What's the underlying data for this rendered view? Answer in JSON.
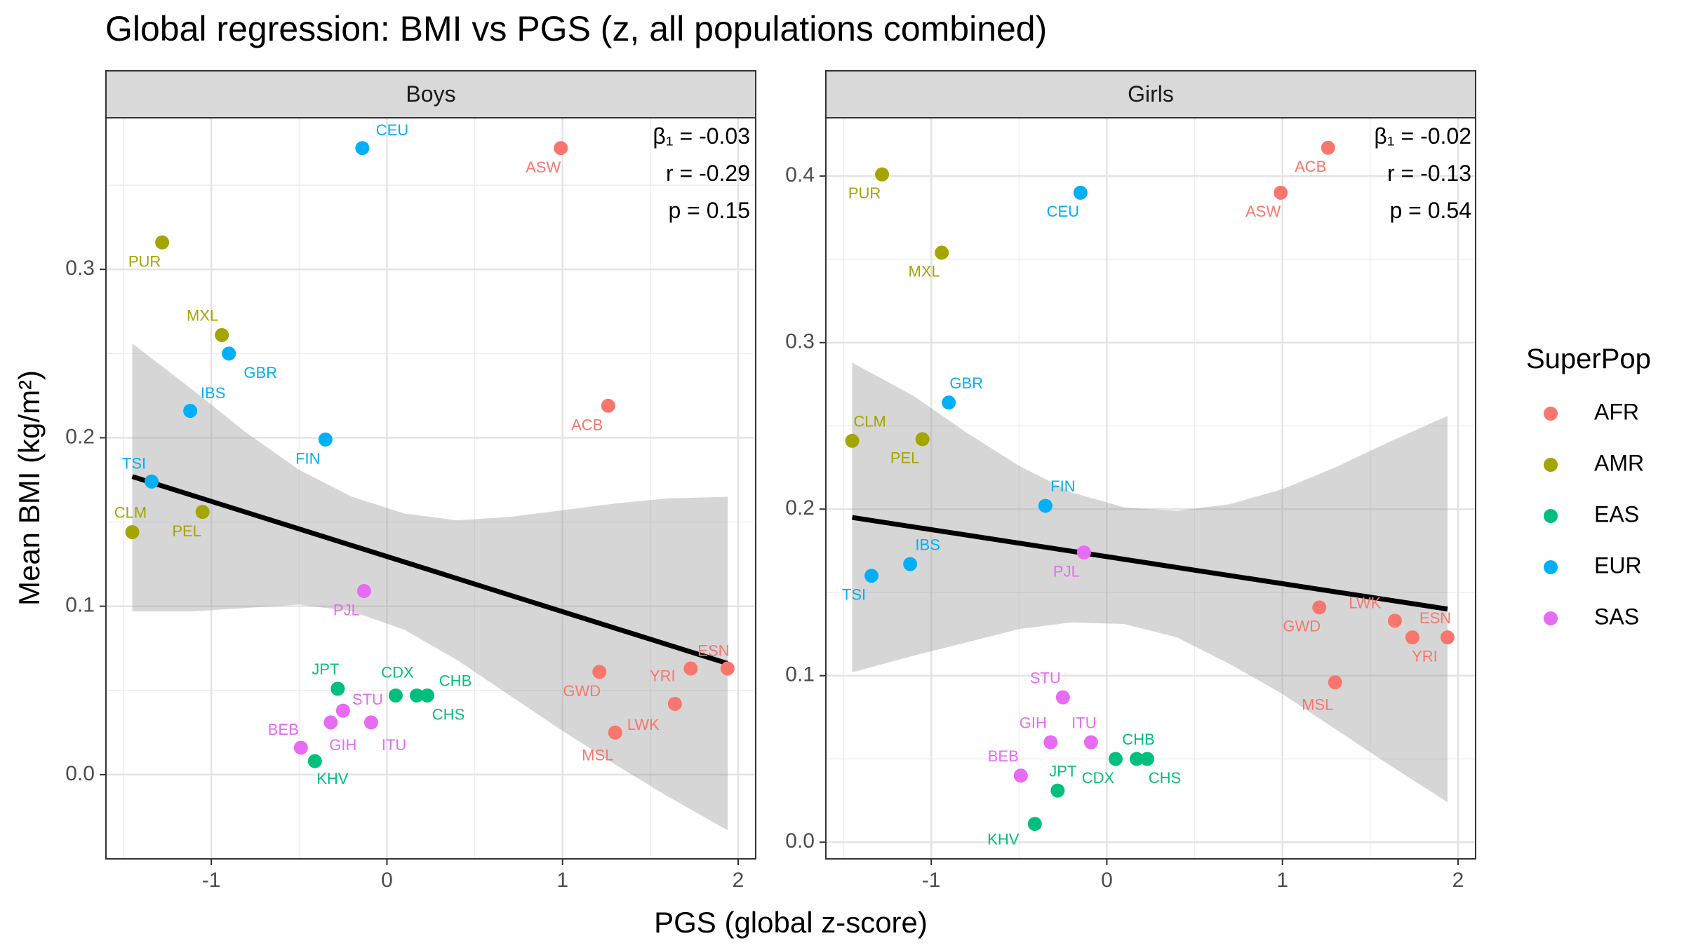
{
  "chart_data": {
    "type": "scatter",
    "title": "Global regression: BMI vs PGS (z, all populations combined)",
    "xlabel": "PGS (global z-score)",
    "ylabel": "Mean BMI (kg/m²)",
    "grid": true,
    "legend": {
      "title": "SuperPop",
      "position": "right",
      "entries": [
        {
          "name": "AFR",
          "color": "#F8766D"
        },
        {
          "name": "AMR",
          "color": "#A3A500"
        },
        {
          "name": "EAS",
          "color": "#00BF7D"
        },
        {
          "name": "EUR",
          "color": "#00B0F6"
        },
        {
          "name": "SAS",
          "color": "#E76BF3"
        }
      ]
    },
    "panels": [
      {
        "name": "Boys",
        "xlim": [
          -1.6,
          2.1
        ],
        "ylim": [
          -0.05,
          0.39
        ],
        "xticks": [
          -1,
          0,
          1,
          2
        ],
        "yticks": [
          0.0,
          0.1,
          0.2,
          0.3
        ],
        "ytick_labels": [
          "0.0",
          "0.1",
          "0.2",
          "0.3"
        ],
        "stats": [
          "β₁ = -0.03",
          "r = -0.29",
          "p = 0.15"
        ],
        "fit_line": {
          "x": [
            -1.45,
            1.94
          ],
          "y": [
            0.177,
            0.066
          ]
        },
        "band": {
          "x": [
            -1.45,
            -1.1,
            -0.8,
            -0.5,
            -0.2,
            0.1,
            0.4,
            0.7,
            1.0,
            1.3,
            1.6,
            1.94
          ],
          "upper": [
            0.256,
            0.228,
            0.203,
            0.181,
            0.165,
            0.155,
            0.151,
            0.153,
            0.157,
            0.161,
            0.164,
            0.165
          ],
          "lower": [
            0.097,
            0.097,
            0.099,
            0.101,
            0.097,
            0.086,
            0.068,
            0.047,
            0.026,
            0.006,
            -0.013,
            -0.033
          ]
        },
        "points": [
          {
            "label": "ASW",
            "pop": "AFR",
            "x": 0.99,
            "y": 0.372,
            "lx": -0.1,
            "ly": -0.012
          },
          {
            "label": "ACB",
            "pop": "AFR",
            "x": 1.26,
            "y": 0.219,
            "lx": -0.12,
            "ly": -0.012
          },
          {
            "label": "ESN",
            "pop": "AFR",
            "x": 1.94,
            "y": 0.063,
            "lx": -0.08,
            "ly": 0.01
          },
          {
            "label": "YRI",
            "pop": "AFR",
            "x": 1.73,
            "y": 0.063,
            "lx": -0.16,
            "ly": -0.005
          },
          {
            "label": "GWD",
            "pop": "AFR",
            "x": 1.21,
            "y": 0.061,
            "lx": -0.1,
            "ly": -0.012
          },
          {
            "label": "LWK",
            "pop": "AFR",
            "x": 1.64,
            "y": 0.042,
            "lx": -0.18,
            "ly": -0.013
          },
          {
            "label": "MSL",
            "pop": "AFR",
            "x": 1.3,
            "y": 0.025,
            "lx": -0.1,
            "ly": -0.014
          },
          {
            "label": "PUR",
            "pop": "AMR",
            "x": -1.28,
            "y": 0.316,
            "lx": -0.1,
            "ly": -0.012
          },
          {
            "label": "MXL",
            "pop": "AMR",
            "x": -0.94,
            "y": 0.261,
            "lx": -0.11,
            "ly": 0.011
          },
          {
            "label": "CLM",
            "pop": "AMR",
            "x": -1.45,
            "y": 0.144,
            "lx": -0.01,
            "ly": 0.011
          },
          {
            "label": "PEL",
            "pop": "AMR",
            "x": -1.05,
            "y": 0.156,
            "lx": -0.09,
            "ly": -0.012
          },
          {
            "label": "CEU",
            "pop": "EUR",
            "x": -0.14,
            "y": 0.372,
            "lx": 0.17,
            "ly": 0.01
          },
          {
            "label": "GBR",
            "pop": "EUR",
            "x": -0.9,
            "y": 0.25,
            "lx": 0.18,
            "ly": -0.012
          },
          {
            "label": "IBS",
            "pop": "EUR",
            "x": -1.12,
            "y": 0.216,
            "lx": 0.13,
            "ly": 0.01
          },
          {
            "label": "FIN",
            "pop": "EUR",
            "x": -0.35,
            "y": 0.199,
            "lx": -0.1,
            "ly": -0.012
          },
          {
            "label": "TSI",
            "pop": "EUR",
            "x": -1.34,
            "y": 0.174,
            "lx": -0.1,
            "ly": 0.01
          },
          {
            "label": "PJL",
            "pop": "SAS",
            "x": -0.13,
            "y": 0.109,
            "lx": -0.1,
            "ly": -0.012
          },
          {
            "label": "STU",
            "pop": "SAS",
            "x": -0.25,
            "y": 0.038,
            "lx": 0.14,
            "ly": 0.006
          },
          {
            "label": "GIH",
            "pop": "SAS",
            "x": -0.32,
            "y": 0.031,
            "lx": 0.07,
            "ly": -0.014
          },
          {
            "label": "ITU",
            "pop": "SAS",
            "x": -0.09,
            "y": 0.031,
            "lx": 0.13,
            "ly": -0.014
          },
          {
            "label": "BEB",
            "pop": "SAS",
            "x": -0.49,
            "y": 0.016,
            "lx": -0.1,
            "ly": 0.01
          },
          {
            "label": "JPT",
            "pop": "EAS",
            "x": -0.28,
            "y": 0.051,
            "lx": -0.07,
            "ly": 0.011
          },
          {
            "label": "CDX",
            "pop": "EAS",
            "x": 0.05,
            "y": 0.047,
            "lx": 0.01,
            "ly": 0.013
          },
          {
            "label": "CHB",
            "pop": "EAS",
            "x": 0.23,
            "y": 0.047,
            "lx": 0.16,
            "ly": 0.008
          },
          {
            "label": "CHS",
            "pop": "EAS",
            "x": 0.17,
            "y": 0.047,
            "lx": 0.18,
            "ly": -0.012
          },
          {
            "label": "KHV",
            "pop": "EAS",
            "x": -0.41,
            "y": 0.008,
            "lx": 0.1,
            "ly": -0.011
          }
        ]
      },
      {
        "name": "Girls",
        "xlim": [
          -1.6,
          2.1
        ],
        "ylim": [
          -0.01,
          0.435
        ],
        "xticks": [
          -1,
          0,
          1,
          2
        ],
        "yticks": [
          0.0,
          0.1,
          0.2,
          0.3,
          0.4
        ],
        "ytick_labels": [
          "0.0",
          "0.1",
          "0.2",
          "0.3",
          "0.4"
        ],
        "stats": [
          "β₁ = -0.02",
          "r = -0.13",
          "p = 0.54"
        ],
        "fit_line": {
          "x": [
            -1.45,
            1.94
          ],
          "y": [
            0.195,
            0.14
          ]
        },
        "band": {
          "x": [
            -1.45,
            -1.1,
            -0.8,
            -0.5,
            -0.2,
            0.1,
            0.4,
            0.7,
            1.0,
            1.3,
            1.6,
            1.94
          ],
          "upper": [
            0.288,
            0.268,
            0.246,
            0.226,
            0.21,
            0.201,
            0.199,
            0.203,
            0.212,
            0.225,
            0.24,
            0.256
          ],
          "lower": [
            0.102,
            0.112,
            0.12,
            0.128,
            0.132,
            0.131,
            0.123,
            0.107,
            0.089,
            0.068,
            0.047,
            0.024
          ]
        },
        "points": [
          {
            "label": "ACB",
            "pop": "AFR",
            "x": 1.26,
            "y": 0.417,
            "lx": -0.1,
            "ly": -0.012
          },
          {
            "label": "ASW",
            "pop": "AFR",
            "x": 0.99,
            "y": 0.39,
            "lx": -0.1,
            "ly": -0.012
          },
          {
            "label": "GWD",
            "pop": "AFR",
            "x": 1.21,
            "y": 0.141,
            "lx": -0.1,
            "ly": -0.012
          },
          {
            "label": "LWK",
            "pop": "AFR",
            "x": 1.64,
            "y": 0.133,
            "lx": -0.17,
            "ly": 0.01
          },
          {
            "label": "YRI",
            "pop": "AFR",
            "x": 1.74,
            "y": 0.123,
            "lx": 0.07,
            "ly": -0.012
          },
          {
            "label": "ESN",
            "pop": "AFR",
            "x": 1.94,
            "y": 0.123,
            "lx": -0.07,
            "ly": 0.011
          },
          {
            "label": "MSL",
            "pop": "AFR",
            "x": 1.3,
            "y": 0.096,
            "lx": -0.1,
            "ly": -0.014
          },
          {
            "label": "PUR",
            "pop": "AMR",
            "x": -1.28,
            "y": 0.401,
            "lx": -0.1,
            "ly": -0.012
          },
          {
            "label": "MXL",
            "pop": "AMR",
            "x": -0.94,
            "y": 0.354,
            "lx": -0.1,
            "ly": -0.012
          },
          {
            "label": "CLM",
            "pop": "AMR",
            "x": -1.45,
            "y": 0.241,
            "lx": 0.1,
            "ly": 0.011
          },
          {
            "label": "PEL",
            "pop": "AMR",
            "x": -1.05,
            "y": 0.242,
            "lx": -0.1,
            "ly": -0.012
          },
          {
            "label": "CEU",
            "pop": "EUR",
            "x": -0.15,
            "y": 0.39,
            "lx": -0.1,
            "ly": -0.012
          },
          {
            "label": "GBR",
            "pop": "EUR",
            "x": -0.9,
            "y": 0.264,
            "lx": 0.1,
            "ly": 0.011
          },
          {
            "label": "FIN",
            "pop": "EUR",
            "x": -0.35,
            "y": 0.202,
            "lx": 0.1,
            "ly": 0.011
          },
          {
            "label": "IBS",
            "pop": "EUR",
            "x": -1.12,
            "y": 0.167,
            "lx": 0.1,
            "ly": 0.011
          },
          {
            "label": "TSI",
            "pop": "EUR",
            "x": -1.34,
            "y": 0.16,
            "lx": -0.1,
            "ly": -0.012
          },
          {
            "label": "PJL",
            "pop": "SAS",
            "x": -0.13,
            "y": 0.174,
            "lx": -0.1,
            "ly": -0.012
          },
          {
            "label": "STU",
            "pop": "SAS",
            "x": -0.25,
            "y": 0.087,
            "lx": -0.1,
            "ly": 0.011
          },
          {
            "label": "GIH",
            "pop": "SAS",
            "x": -0.32,
            "y": 0.06,
            "lx": -0.1,
            "ly": 0.011
          },
          {
            "label": "ITU",
            "pop": "SAS",
            "x": -0.09,
            "y": 0.06,
            "lx": -0.04,
            "ly": 0.011
          },
          {
            "label": "BEB",
            "pop": "SAS",
            "x": -0.49,
            "y": 0.04,
            "lx": -0.1,
            "ly": 0.011
          },
          {
            "label": "CHB",
            "pop": "EAS",
            "x": 0.17,
            "y": 0.05,
            "lx": 0.01,
            "ly": 0.011
          },
          {
            "label": "CDX",
            "pop": "EAS",
            "x": 0.05,
            "y": 0.05,
            "lx": -0.1,
            "ly": -0.012
          },
          {
            "label": "CHS",
            "pop": "EAS",
            "x": 0.23,
            "y": 0.05,
            "lx": 0.1,
            "ly": -0.012
          },
          {
            "label": "JPT",
            "pop": "EAS",
            "x": -0.28,
            "y": 0.031,
            "lx": 0.03,
            "ly": 0.011
          },
          {
            "label": "KHV",
            "pop": "EAS",
            "x": -0.41,
            "y": 0.011,
            "lx": -0.18,
            "ly": -0.01
          }
        ]
      }
    ]
  }
}
